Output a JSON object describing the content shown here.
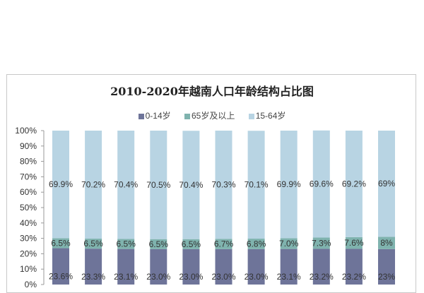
{
  "chart_data": {
    "type": "bar",
    "stacked": true,
    "title": "2010-2020年越南人口年龄结构占比图",
    "ylim": [
      0,
      100
    ],
    "yticks": [
      "0%",
      "10%",
      "20%",
      "30%",
      "40%",
      "50%",
      "60%",
      "70%",
      "80%",
      "90%",
      "100%"
    ],
    "grid": false,
    "legend_position": "top",
    "series": [
      {
        "name": "0-14岁",
        "color": "#6e7499",
        "values": [
          23.6,
          23.3,
          23.1,
          23.0,
          23.0,
          23.0,
          23.0,
          23.1,
          23.2,
          23.2,
          23
        ],
        "labels": [
          "23.6%",
          "23.3%",
          "23.1%",
          "23.0%",
          "23.0%",
          "23.0%",
          "23.0%",
          "23.1%",
          "23.2%",
          "23.2%",
          "23%"
        ]
      },
      {
        "name": "65岁及以上",
        "color": "#7fb3ae",
        "values": [
          6.5,
          6.5,
          6.5,
          6.5,
          6.5,
          6.7,
          6.8,
          7.0,
          7.3,
          7.6,
          8
        ],
        "labels": [
          "6.5%",
          "6.5%",
          "6.5%",
          "6.5%",
          "6.5%",
          "6.7%",
          "6.8%",
          "7.0%",
          "7.3%",
          "7.6%",
          "8%"
        ]
      },
      {
        "name": "15-64岁",
        "color": "#b8d4e3",
        "values": [
          69.9,
          70.2,
          70.4,
          70.5,
          70.4,
          70.3,
          70.1,
          69.9,
          69.6,
          69.2,
          69
        ],
        "labels": [
          "69.9%",
          "70.2%",
          "70.4%",
          "70.5%",
          "70.4%",
          "70.3%",
          "70.1%",
          "69.9%",
          "69.6%",
          "69.2%",
          "69%"
        ]
      }
    ]
  }
}
